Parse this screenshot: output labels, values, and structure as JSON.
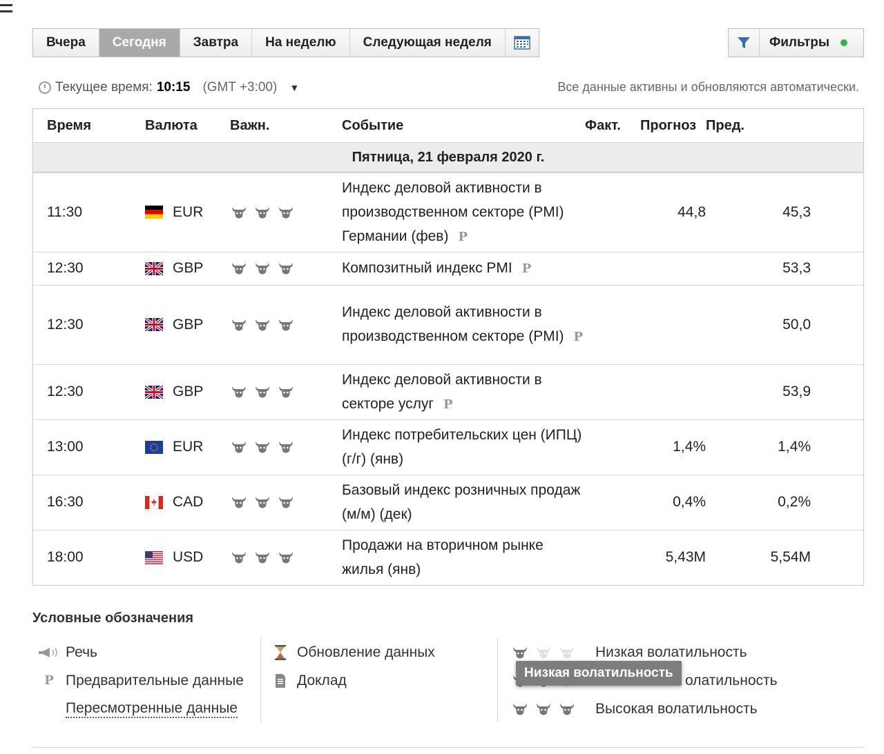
{
  "tabs": [
    {
      "label": "Вчера",
      "active": false
    },
    {
      "label": "Сегодня",
      "active": true
    },
    {
      "label": "Завтра",
      "active": false
    },
    {
      "label": "На неделю",
      "active": false
    },
    {
      "label": "Следующая неделя",
      "active": false
    }
  ],
  "icons": {
    "calendar": "calendar-icon",
    "filter": "filter-icon",
    "clock": "clock-icon",
    "bull": "bull-icon"
  },
  "filters": {
    "label": "Фильтры",
    "status_color": "#2fb64a"
  },
  "timebar": {
    "label": "Текущее время:",
    "time": "10:15",
    "tz": "(GMT +3:00)"
  },
  "autonote": "Все данные активны и обновляются автоматически.",
  "table": {
    "headers": {
      "time": "Время",
      "currency": "Валюта",
      "importance": "Важн.",
      "event": "Событие",
      "actual": "Факт.",
      "forecast": "Прогноз",
      "previous": "Пред."
    },
    "date": "Пятница, 21 февраля 2020 г.",
    "rows": [
      {
        "time": "11:30",
        "flag": "DE",
        "currency": "EUR",
        "bulls": 3,
        "event": "Индекс деловой активности в производственном секторе (PMI) Германии (фев)",
        "prelim": "P",
        "actual": "",
        "forecast": "44,8",
        "previous": "45,3"
      },
      {
        "time": "12:30",
        "flag": "GB",
        "currency": "GBP",
        "bulls": 3,
        "event": "Композитный индекс PMI",
        "prelim": "P",
        "actual": "",
        "forecast": "",
        "previous": "53,3"
      },
      {
        "time": "12:30",
        "flag": "GB",
        "currency": "GBP",
        "bulls": 3,
        "event": "Индекс деловой активности в производственном секторе (PMI)",
        "prelim": "P",
        "actual": "",
        "forecast": "",
        "previous": "50,0"
      },
      {
        "time": "12:30",
        "flag": "GB",
        "currency": "GBP",
        "bulls": 3,
        "event": "Индекс деловой активности в секторе услуг",
        "prelim": "P",
        "actual": "",
        "forecast": "",
        "previous": "53,9"
      },
      {
        "time": "13:00",
        "flag": "EU",
        "currency": "EUR",
        "bulls": 3,
        "event": "Индекс потребительских цен (ИПЦ) (г/г) (янв)",
        "prelim": "",
        "actual": "",
        "forecast": "1,4%",
        "previous": "1,4%"
      },
      {
        "time": "16:30",
        "flag": "CA",
        "currency": "CAD",
        "bulls": 3,
        "event": "Базовый индекс розничных продаж (м/м) (дек)",
        "prelim": "",
        "actual": "",
        "forecast": "0,4%",
        "previous": "0,2%"
      },
      {
        "time": "18:00",
        "flag": "US",
        "currency": "USD",
        "bulls": 3,
        "event": "Продажи на вторичном рынке жилья (янв)",
        "prelim": "",
        "actual": "",
        "forecast": "5,43M",
        "previous": "5,54M"
      }
    ]
  },
  "legend": {
    "title": "Условные обозначения",
    "speech": "Речь",
    "preliminary": "Предварительные данные",
    "preliminary_icon": "P",
    "revised": "Пересмотренные данные",
    "data_update": "Обновление данных",
    "report": "Доклад",
    "low": "Низкая волатильность",
    "medium_partial": "олатильность",
    "high": "Высокая волатильность",
    "tooltip": "Низкая волатильность"
  }
}
